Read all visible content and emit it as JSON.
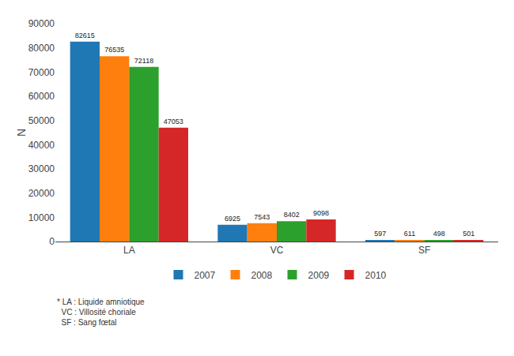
{
  "chart_data": {
    "type": "bar",
    "categories": [
      "LA",
      "VC",
      "SF"
    ],
    "series": [
      {
        "name": "2007",
        "values": [
          82615,
          6925,
          597
        ]
      },
      {
        "name": "2008",
        "values": [
          76535,
          7543,
          611
        ]
      },
      {
        "name": "2009",
        "values": [
          72118,
          8402,
          498
        ]
      },
      {
        "name": "2010",
        "values": [
          47053,
          9098,
          501
        ]
      }
    ],
    "ylabel": "N",
    "ylim": [
      0,
      90000
    ],
    "yticks": [
      0,
      10000,
      20000,
      30000,
      40000,
      50000,
      60000,
      70000,
      80000,
      90000
    ],
    "grid": false,
    "legend": "bottom",
    "data_labels": true,
    "annotations": [
      "* LA : Liquide amniotique\n  VC : Villosité choriale\n  SF : Sang fœtal"
    ]
  }
}
